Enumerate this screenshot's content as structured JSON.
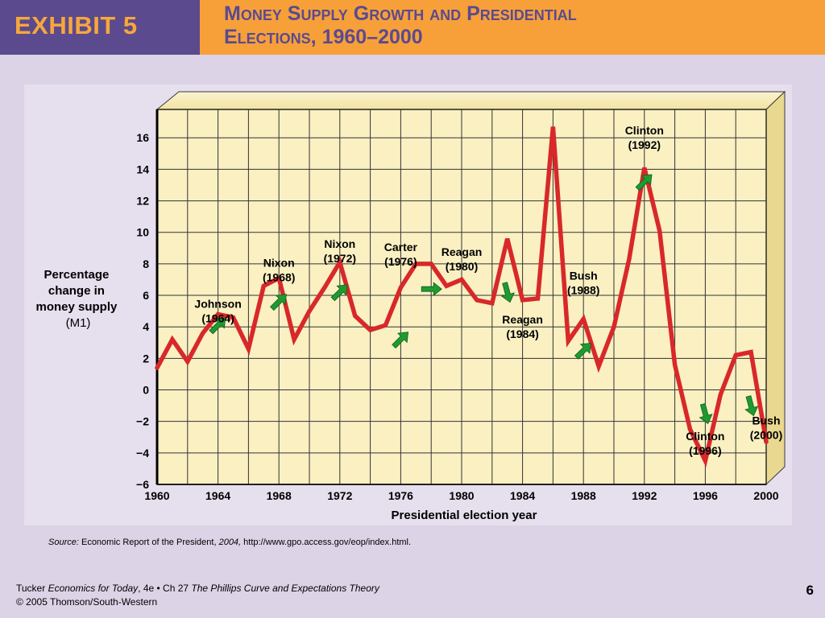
{
  "header": {
    "exhibit": "EXHIBIT 5",
    "title_line1": "Money Supply Growth and Presidential",
    "title_line2": "Elections, 1960–2000"
  },
  "colors": {
    "header_purple": "#5b4a8e",
    "header_orange": "#f7a03a",
    "plot_fill": "#faf0c2",
    "line_red": "#d8282a",
    "arrow_green": "#1f9a30"
  },
  "chart_data": {
    "type": "line",
    "xlabel": "Presidential election year",
    "ylabel_lines": [
      "Percentage",
      "change in",
      "money supply",
      "(M1)"
    ],
    "xlim": [
      1960,
      2000
    ],
    "ylim": [
      -6,
      18
    ],
    "x_ticks": [
      1960,
      1964,
      1968,
      1972,
      1976,
      1980,
      1984,
      1988,
      1992,
      1996,
      2000
    ],
    "x_tick_labels": [
      "1960",
      "1964",
      "1968",
      "1972",
      "1976",
      "1980",
      "1984",
      "1988",
      "1992",
      "1996",
      "2000"
    ],
    "y_ticks": [
      -6,
      -4,
      -2,
      0,
      2,
      4,
      6,
      8,
      10,
      12,
      14,
      16
    ],
    "y_tick_labels": [
      "−6",
      "−4",
      "−2",
      "0",
      "2",
      "4",
      "6",
      "8",
      "10",
      "12",
      "14",
      "16"
    ],
    "grid": true,
    "series": [
      {
        "x": [
          1960,
          1961,
          1962,
          1963,
          1964,
          1965,
          1966,
          1967,
          1968,
          1969,
          1970,
          1971,
          1972,
          1973,
          1974,
          1975,
          1976,
          1977,
          1978,
          1979,
          1980,
          1981,
          1982,
          1983,
          1984,
          1985,
          1986,
          1987,
          1988,
          1989,
          1990,
          1991,
          1992,
          1993,
          1994,
          1995,
          1996,
          1997,
          1998,
          1999,
          2000
        ],
        "values": [
          1.4,
          3.2,
          1.8,
          3.6,
          4.8,
          4.6,
          2.6,
          6.6,
          7.1,
          3.2,
          5.0,
          6.5,
          8.1,
          4.7,
          3.8,
          4.1,
          6.5,
          8.0,
          8.0,
          6.6,
          7.0,
          5.7,
          5.5,
          9.6,
          5.7,
          5.8,
          16.7,
          3.1,
          4.5,
          1.5,
          4.0,
          8.3,
          14.1,
          10.1,
          1.6,
          -2.5,
          -4.5,
          -0.3,
          2.2,
          2.4,
          -3.3
        ]
      }
    ],
    "annotations": [
      {
        "name": "Johnson",
        "year": "(1964)",
        "x": 1964,
        "y": 5
      },
      {
        "name": "Nixon",
        "year": "(1968)",
        "x": 1968,
        "y": 7.6
      },
      {
        "name": "Nixon",
        "year": "(1972)",
        "x": 1972,
        "y": 8.8
      },
      {
        "name": "Carter",
        "year": "(1976)",
        "x": 1976,
        "y": 8.6
      },
      {
        "name": "Reagan",
        "year": "(1980)",
        "x": 1980,
        "y": 8.3
      },
      {
        "name": "Reagan",
        "year": "(1984)",
        "x": 1984,
        "y": 4
      },
      {
        "name": "Bush",
        "year": "(1988)",
        "x": 1988,
        "y": 6.8
      },
      {
        "name": "Clinton",
        "year": "(1992)",
        "x": 1992,
        "y": 16
      },
      {
        "name": "Clinton",
        "year": "(1996)",
        "x": 1996,
        "y": -3.4
      },
      {
        "name": "Bush",
        "year": "(2000)",
        "x": 2000,
        "y": -2.4
      }
    ],
    "arrows": [
      {
        "x": 1964,
        "y": 4.1,
        "direction": "up"
      },
      {
        "x": 1968,
        "y": 5.6,
        "direction": "up"
      },
      {
        "x": 1972,
        "y": 6.2,
        "direction": "up"
      },
      {
        "x": 1976,
        "y": 3.2,
        "direction": "up"
      },
      {
        "x": 1978,
        "y": 6.4,
        "direction": "right"
      },
      {
        "x": 1983,
        "y": 6.2,
        "direction": "down"
      },
      {
        "x": 1988,
        "y": 2.5,
        "direction": "up"
      },
      {
        "x": 1992,
        "y": 13.2,
        "direction": "up"
      },
      {
        "x": 1996,
        "y": -1.5,
        "direction": "down"
      },
      {
        "x": 1999,
        "y": -1.0,
        "direction": "down"
      }
    ]
  },
  "source": {
    "label": "Source:",
    "text": " Economic Report of the President, ",
    "year": "2004,",
    "url": " http://www.gpo.access.gov/eop/index.html."
  },
  "footer": {
    "author": "Tucker ",
    "book": "Economics for Today",
    "edition": ", 4e • Ch 27 ",
    "chapter": "The Phillips Curve and Expectations Theory",
    "copyright": "© 2005 Thomson/South-Western",
    "page": "6"
  }
}
